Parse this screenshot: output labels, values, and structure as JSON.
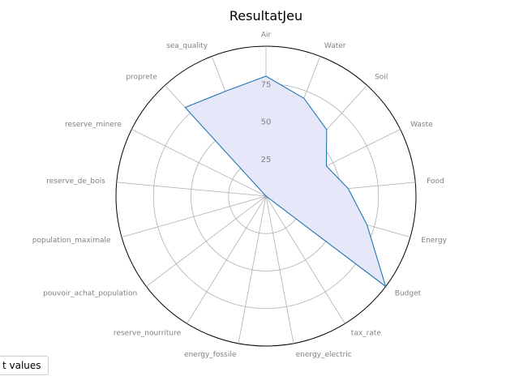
{
  "chart_data": {
    "type": "radar",
    "title": "ResultatJeu",
    "categories": [
      "Air",
      "Water",
      "Soil",
      "Waste",
      "Food",
      "Energy",
      "Budget",
      "tax_rate",
      "energy_electric",
      "energy_fossile",
      "reserve_nourriture",
      "pouvoir_achat_population",
      "population_maximale",
      "reserve_de_bois",
      "reserve_minere",
      "proprete",
      "sea_quality"
    ],
    "series": [
      {
        "name": "",
        "values": [
          80,
          70,
          60,
          45,
          55,
          70,
          100,
          0,
          0,
          0,
          0,
          0,
          0,
          0,
          0,
          80,
          75
        ],
        "line_color": "#1f77b4",
        "fill_color": "#e6e6fa"
      }
    ],
    "rlim": [
      0,
      100
    ],
    "radial_ticks": [
      25,
      50,
      75
    ],
    "grid": true,
    "legend": {
      "text": "t values",
      "placement": "bottom-left"
    }
  }
}
